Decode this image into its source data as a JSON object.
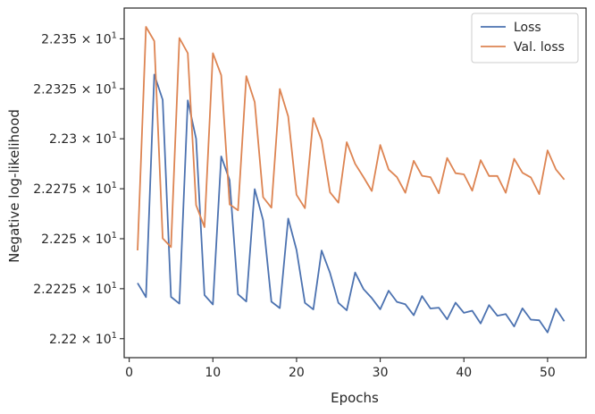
{
  "chart_data": {
    "type": "line",
    "xlabel": "Epochs",
    "ylabel": "Negative log-likelihood",
    "xlim": [
      -0.6,
      54.6
    ],
    "ylim": [
      22.1905,
      22.3654
    ],
    "x_ticks": [
      0,
      10,
      20,
      30,
      40,
      50
    ],
    "x_tick_labels": [
      "0",
      "10",
      "20",
      "30",
      "40",
      "50"
    ],
    "y_ticks": [
      22.2,
      22.225,
      22.25,
      22.275,
      22.3,
      22.325,
      22.35
    ],
    "y_tick_mantissas": [
      "2.22",
      "2.2225",
      "2.225",
      "2.2275",
      "2.23",
      "2.2325",
      "2.235"
    ],
    "y_tick_base": "10",
    "y_tick_exponent": "1",
    "grid": false,
    "legend_position": "top-right",
    "series": [
      {
        "name": "Loss",
        "color": "#4C72B0",
        "x": [
          1,
          2,
          3,
          4,
          5,
          6,
          7,
          8,
          9,
          10,
          11,
          12,
          13,
          14,
          15,
          16,
          17,
          18,
          19,
          20,
          21,
          22,
          23,
          24,
          25,
          26,
          27,
          28,
          29,
          30,
          31,
          32,
          33,
          34,
          35,
          36,
          37,
          38,
          39,
          40,
          41,
          42,
          43,
          44,
          45,
          46,
          47,
          48,
          49,
          50,
          51,
          52
        ],
        "values": [
          22.2278,
          22.2208,
          22.3321,
          22.3195,
          22.2209,
          22.2175,
          22.3192,
          22.3,
          22.2218,
          22.2171,
          22.2912,
          22.2793,
          22.2222,
          22.2186,
          22.2748,
          22.2593,
          22.2185,
          22.2153,
          22.2601,
          22.2444,
          22.2179,
          22.2146,
          22.2441,
          22.2329,
          22.2179,
          22.2142,
          22.2331,
          22.2248,
          22.2203,
          22.2147,
          22.224,
          22.2184,
          22.2172,
          22.2117,
          22.2213,
          22.2151,
          22.2155,
          22.2097,
          22.218,
          22.2129,
          22.214,
          22.2076,
          22.2168,
          22.2115,
          22.2123,
          22.2061,
          22.2152,
          22.2095,
          22.2092,
          22.2031,
          22.215,
          22.2087
        ]
      },
      {
        "name": "Val. loss",
        "color": "#DD8452",
        "x": [
          1,
          2,
          3,
          4,
          5,
          6,
          7,
          8,
          9,
          10,
          11,
          12,
          13,
          14,
          15,
          16,
          17,
          18,
          19,
          20,
          21,
          22,
          23,
          24,
          25,
          26,
          27,
          28,
          29,
          30,
          31,
          32,
          33,
          34,
          35,
          36,
          37,
          38,
          39,
          40,
          41,
          42,
          43,
          44,
          45,
          46,
          47,
          48,
          49,
          50,
          51,
          52
        ],
        "values": [
          22.2442,
          22.356,
          22.3489,
          22.2502,
          22.2458,
          22.3504,
          22.3428,
          22.2668,
          22.2558,
          22.3428,
          22.3318,
          22.2672,
          22.2642,
          22.3313,
          22.3184,
          22.2708,
          22.2655,
          22.3249,
          22.3112,
          22.272,
          22.2653,
          22.3104,
          22.2992,
          22.2732,
          22.268,
          22.2983,
          22.2875,
          22.2808,
          22.2739,
          22.2969,
          22.2846,
          22.2808,
          22.273,
          22.289,
          22.2815,
          22.2808,
          22.2727,
          22.2904,
          22.2828,
          22.2822,
          22.274,
          22.2893,
          22.2814,
          22.2814,
          22.273,
          22.29,
          22.283,
          22.2807,
          22.2723,
          22.2942,
          22.2846,
          22.2796
        ]
      }
    ]
  }
}
